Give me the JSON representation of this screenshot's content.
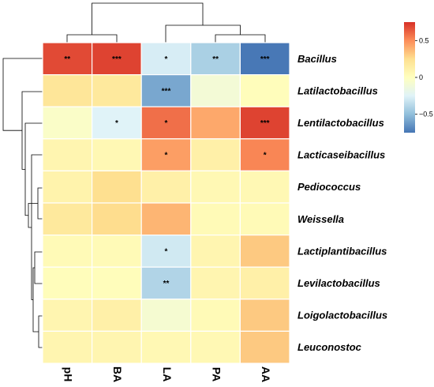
{
  "chart_data": {
    "type": "heatmap",
    "columns": [
      "pH",
      "BA",
      "LA",
      "PA",
      "AA"
    ],
    "rows": [
      "Bacillus",
      "Latilactobacillus",
      "Lentilactobacillus",
      "Lacticaseibacillus",
      "Pediococcus",
      "Weissella",
      "Lactiplantibacillus",
      "Levilactobacillus",
      "Loigolactobacillus",
      "Leuconostoc"
    ],
    "values": [
      [
        0.68,
        0.7,
        -0.28,
        -0.42,
        -0.74
      ],
      [
        0.2,
        0.18,
        -0.58,
        -0.1,
        0.02
      ],
      [
        -0.04,
        -0.25,
        0.58,
        0.42,
        0.7
      ],
      [
        0.08,
        0.06,
        0.45,
        0.12,
        0.52
      ],
      [
        0.1,
        0.25,
        0.12,
        0.06,
        0.06
      ],
      [
        0.18,
        0.26,
        0.38,
        0.04,
        0.04
      ],
      [
        0.04,
        0.04,
        -0.3,
        0.08,
        0.32
      ],
      [
        0.02,
        0.02,
        -0.4,
        0.08,
        0.12
      ],
      [
        0.08,
        0.12,
        -0.08,
        0.04,
        0.32
      ],
      [
        0.08,
        0.08,
        0.06,
        0.06,
        0.32
      ]
    ],
    "significance": [
      [
        "**",
        "***",
        "*",
        "**",
        "***"
      ],
      [
        "",
        "",
        "***",
        "",
        ""
      ],
      [
        "",
        "*",
        "*",
        "",
        "***"
      ],
      [
        "",
        "",
        "*",
        "",
        "*"
      ],
      [
        "",
        "",
        "",
        "",
        ""
      ],
      [
        "",
        "",
        "",
        "",
        ""
      ],
      [
        "",
        "",
        "*",
        "",
        ""
      ],
      [
        "",
        "",
        "**",
        "",
        ""
      ],
      [
        "",
        "",
        "",
        "",
        ""
      ],
      [
        "",
        "",
        "",
        "",
        ""
      ]
    ],
    "colorbar": {
      "min": -0.75,
      "max": 0.75,
      "ticks": [
        {
          "value": 0.5,
          "label": "0.5"
        },
        {
          "value": 0,
          "label": "0"
        },
        {
          "value": -0.5,
          "label": "−0.5"
        }
      ],
      "colors": [
        "#4575b4",
        "#91bfdb",
        "#e0f3f8",
        "#ffffbf",
        "#fee090",
        "#fc8d59",
        "#d73027"
      ]
    },
    "legend_position": "top-right",
    "grid": true
  }
}
